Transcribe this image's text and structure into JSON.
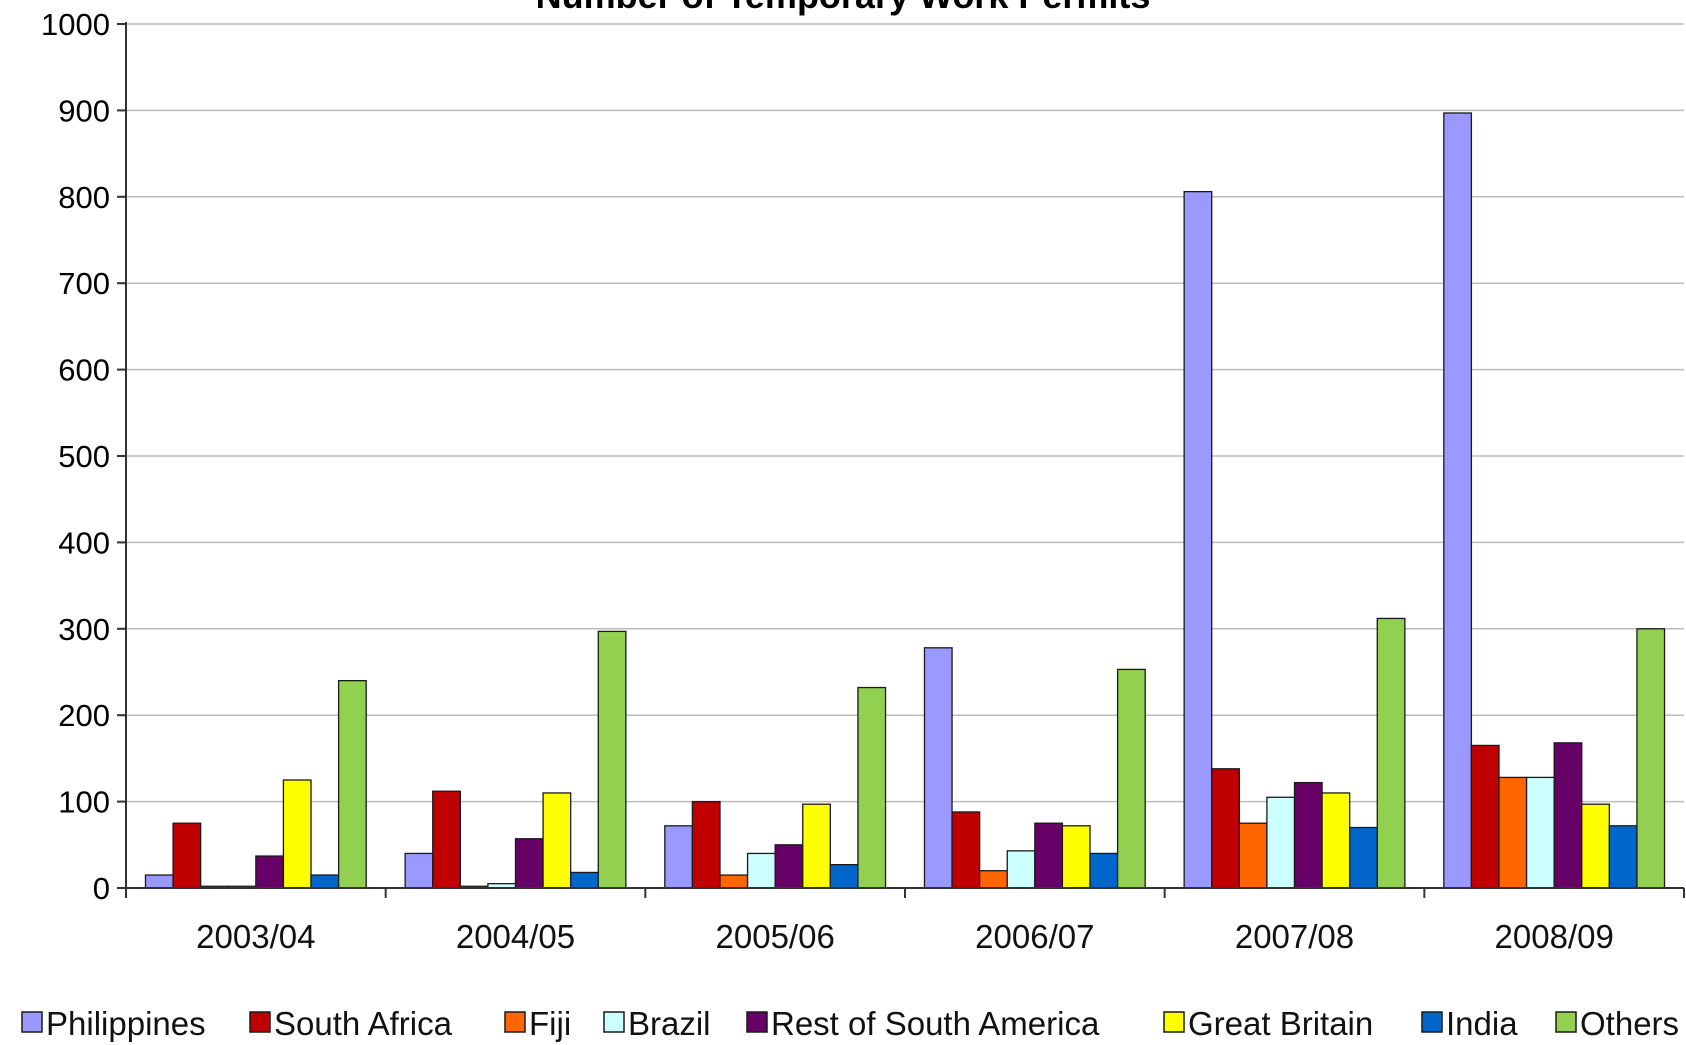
{
  "chart_data": {
    "type": "bar",
    "title": "Number of Temporary Work Permits",
    "xlabel": "",
    "ylabel": "",
    "ylim": [
      0,
      1000
    ],
    "yticks": [
      0,
      100,
      200,
      300,
      400,
      500,
      600,
      700,
      800,
      900,
      1000
    ],
    "categories": [
      "2003/04",
      "2004/05",
      "2005/06",
      "2006/07",
      "2007/08",
      "2008/09"
    ],
    "grid": true,
    "legend_position": "bottom",
    "series": [
      {
        "name": "Philippines",
        "color": "#9999FF",
        "values": [
          15,
          40,
          72,
          278,
          806,
          897
        ]
      },
      {
        "name": "South Africa",
        "color": "#C00000",
        "values": [
          75,
          112,
          100,
          88,
          138,
          165
        ]
      },
      {
        "name": "Fiji",
        "color": "#FF6600",
        "values": [
          2,
          2,
          15,
          20,
          75,
          128
        ]
      },
      {
        "name": "Brazil",
        "color": "#CCFFFF",
        "values": [
          2,
          5,
          40,
          43,
          105,
          128
        ]
      },
      {
        "name": "Rest of South America",
        "color": "#660066",
        "values": [
          37,
          57,
          50,
          75,
          122,
          168
        ]
      },
      {
        "name": "Great Britain",
        "color": "#FFFF00",
        "values": [
          125,
          110,
          97,
          72,
          110,
          97
        ]
      },
      {
        "name": "India",
        "color": "#0066CC",
        "values": [
          15,
          18,
          27,
          40,
          70,
          72
        ]
      },
      {
        "name": "Others",
        "color": "#92D050",
        "values": [
          240,
          297,
          232,
          253,
          312,
          300
        ]
      }
    ]
  }
}
